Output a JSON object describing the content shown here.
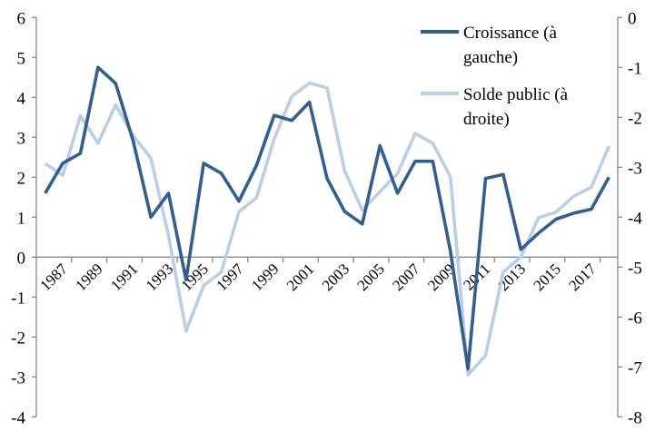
{
  "chart_data": {
    "type": "line",
    "x": [
      1986,
      1987,
      1988,
      1989,
      1990,
      1991,
      1992,
      1993,
      1994,
      1995,
      1996,
      1997,
      1998,
      1999,
      2000,
      2001,
      2002,
      2003,
      2004,
      2005,
      2006,
      2007,
      2008,
      2009,
      2010,
      2011,
      2012,
      2013,
      2014,
      2015,
      2016,
      2017,
      2018
    ],
    "x_tick_labels": [
      "1987",
      "1989",
      "1991",
      "1993",
      "1995",
      "1997",
      "1999",
      "2001",
      "2003",
      "2005",
      "2007",
      "2009",
      "2011",
      "2013",
      "2015",
      "2017"
    ],
    "y_left": {
      "lim": [
        -4,
        6
      ],
      "ticks": [
        "6",
        "5",
        "4",
        "3",
        "2",
        "1",
        "0",
        "-1",
        "-2",
        "-3",
        "-4"
      ]
    },
    "y_right": {
      "lim": [
        -8,
        0
      ],
      "ticks": [
        "0",
        "-1",
        "-2",
        "-3",
        "-4",
        "-5",
        "-6",
        "-7",
        "-8"
      ]
    },
    "series": [
      {
        "name": "Croissance (à gauche)",
        "name_lines": [
          "Croissance (à",
          "gauche)"
        ],
        "axis": "left",
        "color": "#325f91",
        "values": [
          1.6,
          2.35,
          2.6,
          4.75,
          4.35,
          2.9,
          1.0,
          1.6,
          -0.57,
          2.35,
          2.1,
          1.4,
          2.3,
          3.55,
          3.42,
          3.88,
          1.97,
          1.14,
          0.83,
          2.79,
          1.6,
          2.4,
          2.4,
          0.15,
          -2.8,
          1.97,
          2.07,
          0.19,
          0.6,
          0.95,
          1.1,
          1.2,
          2.0
        ]
      },
      {
        "name": "Solde public (à droite)",
        "name_lines": [
          "Solde public (à",
          "droite)"
        ],
        "axis": "right",
        "color": "#b9cfe6",
        "values": [
          -2.93,
          -3.16,
          -1.97,
          -2.52,
          -1.75,
          -2.37,
          -2.82,
          -4.37,
          -6.28,
          -5.37,
          -5.1,
          -3.89,
          -3.61,
          -2.43,
          -1.58,
          -1.31,
          -1.41,
          -3.07,
          -3.86,
          -3.49,
          -3.13,
          -2.32,
          -2.52,
          -3.19,
          -7.16,
          -6.77,
          -5.1,
          -4.8,
          -4.01,
          -3.9,
          -3.58,
          -3.4,
          -2.58
        ]
      }
    ],
    "legend": "top-right",
    "grid": false
  }
}
